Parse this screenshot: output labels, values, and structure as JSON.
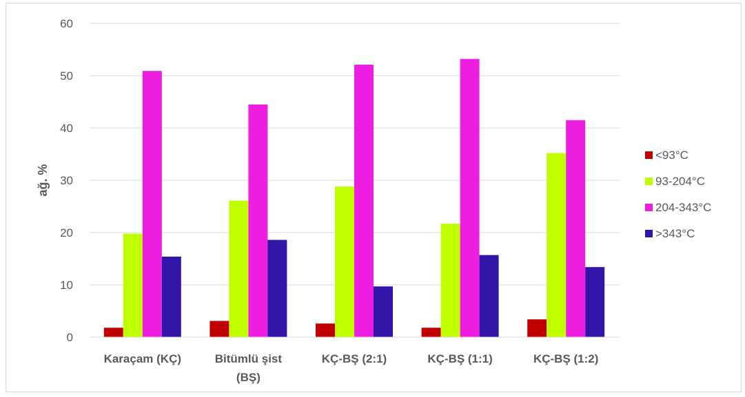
{
  "chart_data": {
    "type": "bar",
    "title": "",
    "xlabel": "",
    "ylabel": "ağ. %",
    "ylim": [
      0,
      60
    ],
    "yticks": [
      0,
      10,
      20,
      30,
      40,
      50,
      60
    ],
    "grid": true,
    "legend_position": "right",
    "categories": [
      [
        "Karaçam (KÇ)"
      ],
      [
        "Bitümlü şist",
        "(BŞ)"
      ],
      [
        "KÇ-BŞ (2:1)"
      ],
      [
        "KÇ-BŞ (1:1)"
      ],
      [
        "KÇ-BŞ (1:2)"
      ]
    ],
    "series": [
      {
        "name": "<93°C",
        "color": "#c00000",
        "values": [
          1.8,
          3.1,
          2.6,
          1.8,
          3.4
        ]
      },
      {
        "name": "93-204°C",
        "color": "#bfff00",
        "values": [
          19.8,
          26.1,
          28.8,
          21.7,
          35.2
        ]
      },
      {
        "name": "204-343°C",
        "color": "#ee1ee0",
        "values": [
          50.9,
          44.5,
          52.1,
          53.2,
          41.5
        ]
      },
      {
        "name": ">343°C",
        "color": "#3314a8",
        "values": [
          15.4,
          18.6,
          9.7,
          15.7,
          13.4
        ]
      }
    ]
  }
}
